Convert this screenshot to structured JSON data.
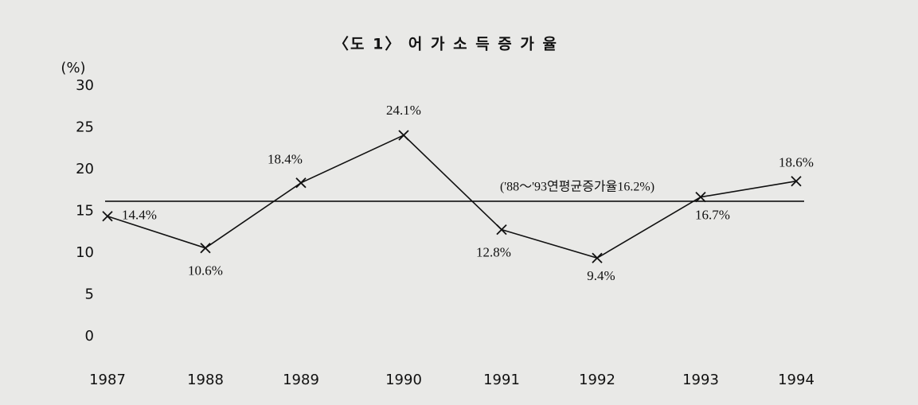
{
  "chart_data": {
    "type": "line",
    "title": "〈도 1〉 어 가 소 득 증 가 율",
    "y_label": "(%)",
    "categories": [
      "1987",
      "1988",
      "1989",
      "1990",
      "1991",
      "1992",
      "1993",
      "1994"
    ],
    "values": [
      14.4,
      10.6,
      18.4,
      24.1,
      12.8,
      9.4,
      16.7,
      18.6
    ],
    "value_labels": [
      "14.4%",
      "10.6%",
      "18.4%",
      "24.1%",
      "12.8%",
      "9.4%",
      "16.7%",
      "18.6%"
    ],
    "color": "#111111",
    "ylim": [
      0,
      30
    ],
    "yticks": [
      0,
      5,
      10,
      15,
      20,
      25,
      30
    ],
    "grid": false,
    "reference_line": {
      "value": 16.2,
      "label": "('88～'93연평균증가율16.2%)"
    }
  }
}
